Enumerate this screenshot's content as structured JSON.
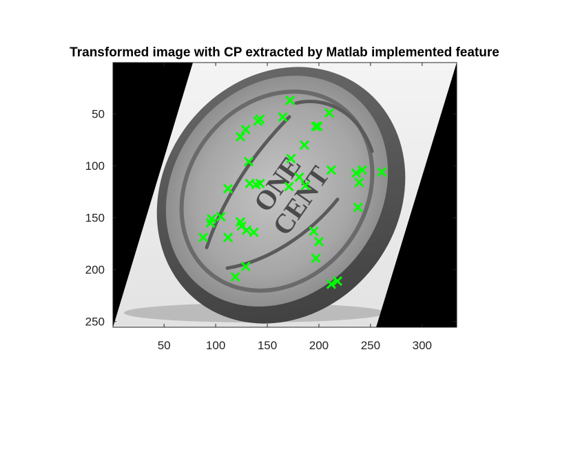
{
  "figure": {
    "title": "Transformed image with CP extracted by Matlab implemented feature"
  },
  "chart_data": {
    "type": "scatter",
    "title": "Transformed image with CP extracted by Matlab implemented feature",
    "xlabel": "",
    "ylabel": "",
    "xlim": [
      0.5,
      333.5
    ],
    "ylim": [
      0.5,
      255.5
    ],
    "y_reversed": true,
    "xticks": [
      50,
      100,
      150,
      200,
      250,
      300
    ],
    "yticks": [
      50,
      100,
      150,
      200,
      250
    ],
    "background_image": "sheared grayscale photo of a one cent coin (ONE CENT) on a black canvas",
    "colors": {
      "marker": "#00ff00",
      "canvas": "#000000",
      "image_light": "#eeeeee"
    },
    "marker": "x",
    "series": [
      {
        "x": [
          172,
          210,
          143,
          141,
          165,
          129,
          124,
          197,
          199,
          186,
          173,
          132,
          212,
          236,
          242,
          261,
          239,
          181,
          133,
          139,
          143,
          171,
          187,
          112,
          238,
          105,
          96,
          95,
          124,
          125,
          130,
          137,
          88,
          112,
          195,
          200,
          197,
          129,
          119,
          212,
          218
        ],
        "y": [
          37,
          49,
          55,
          57,
          53,
          65,
          72,
          62,
          62,
          80,
          93,
          96,
          104,
          107,
          104,
          106,
          116,
          111,
          117,
          118,
          117,
          120,
          119,
          122,
          140,
          149,
          151,
          155,
          154,
          158,
          162,
          164,
          169,
          169,
          163,
          173,
          189,
          197,
          207,
          214,
          211
        ]
      }
    ]
  }
}
